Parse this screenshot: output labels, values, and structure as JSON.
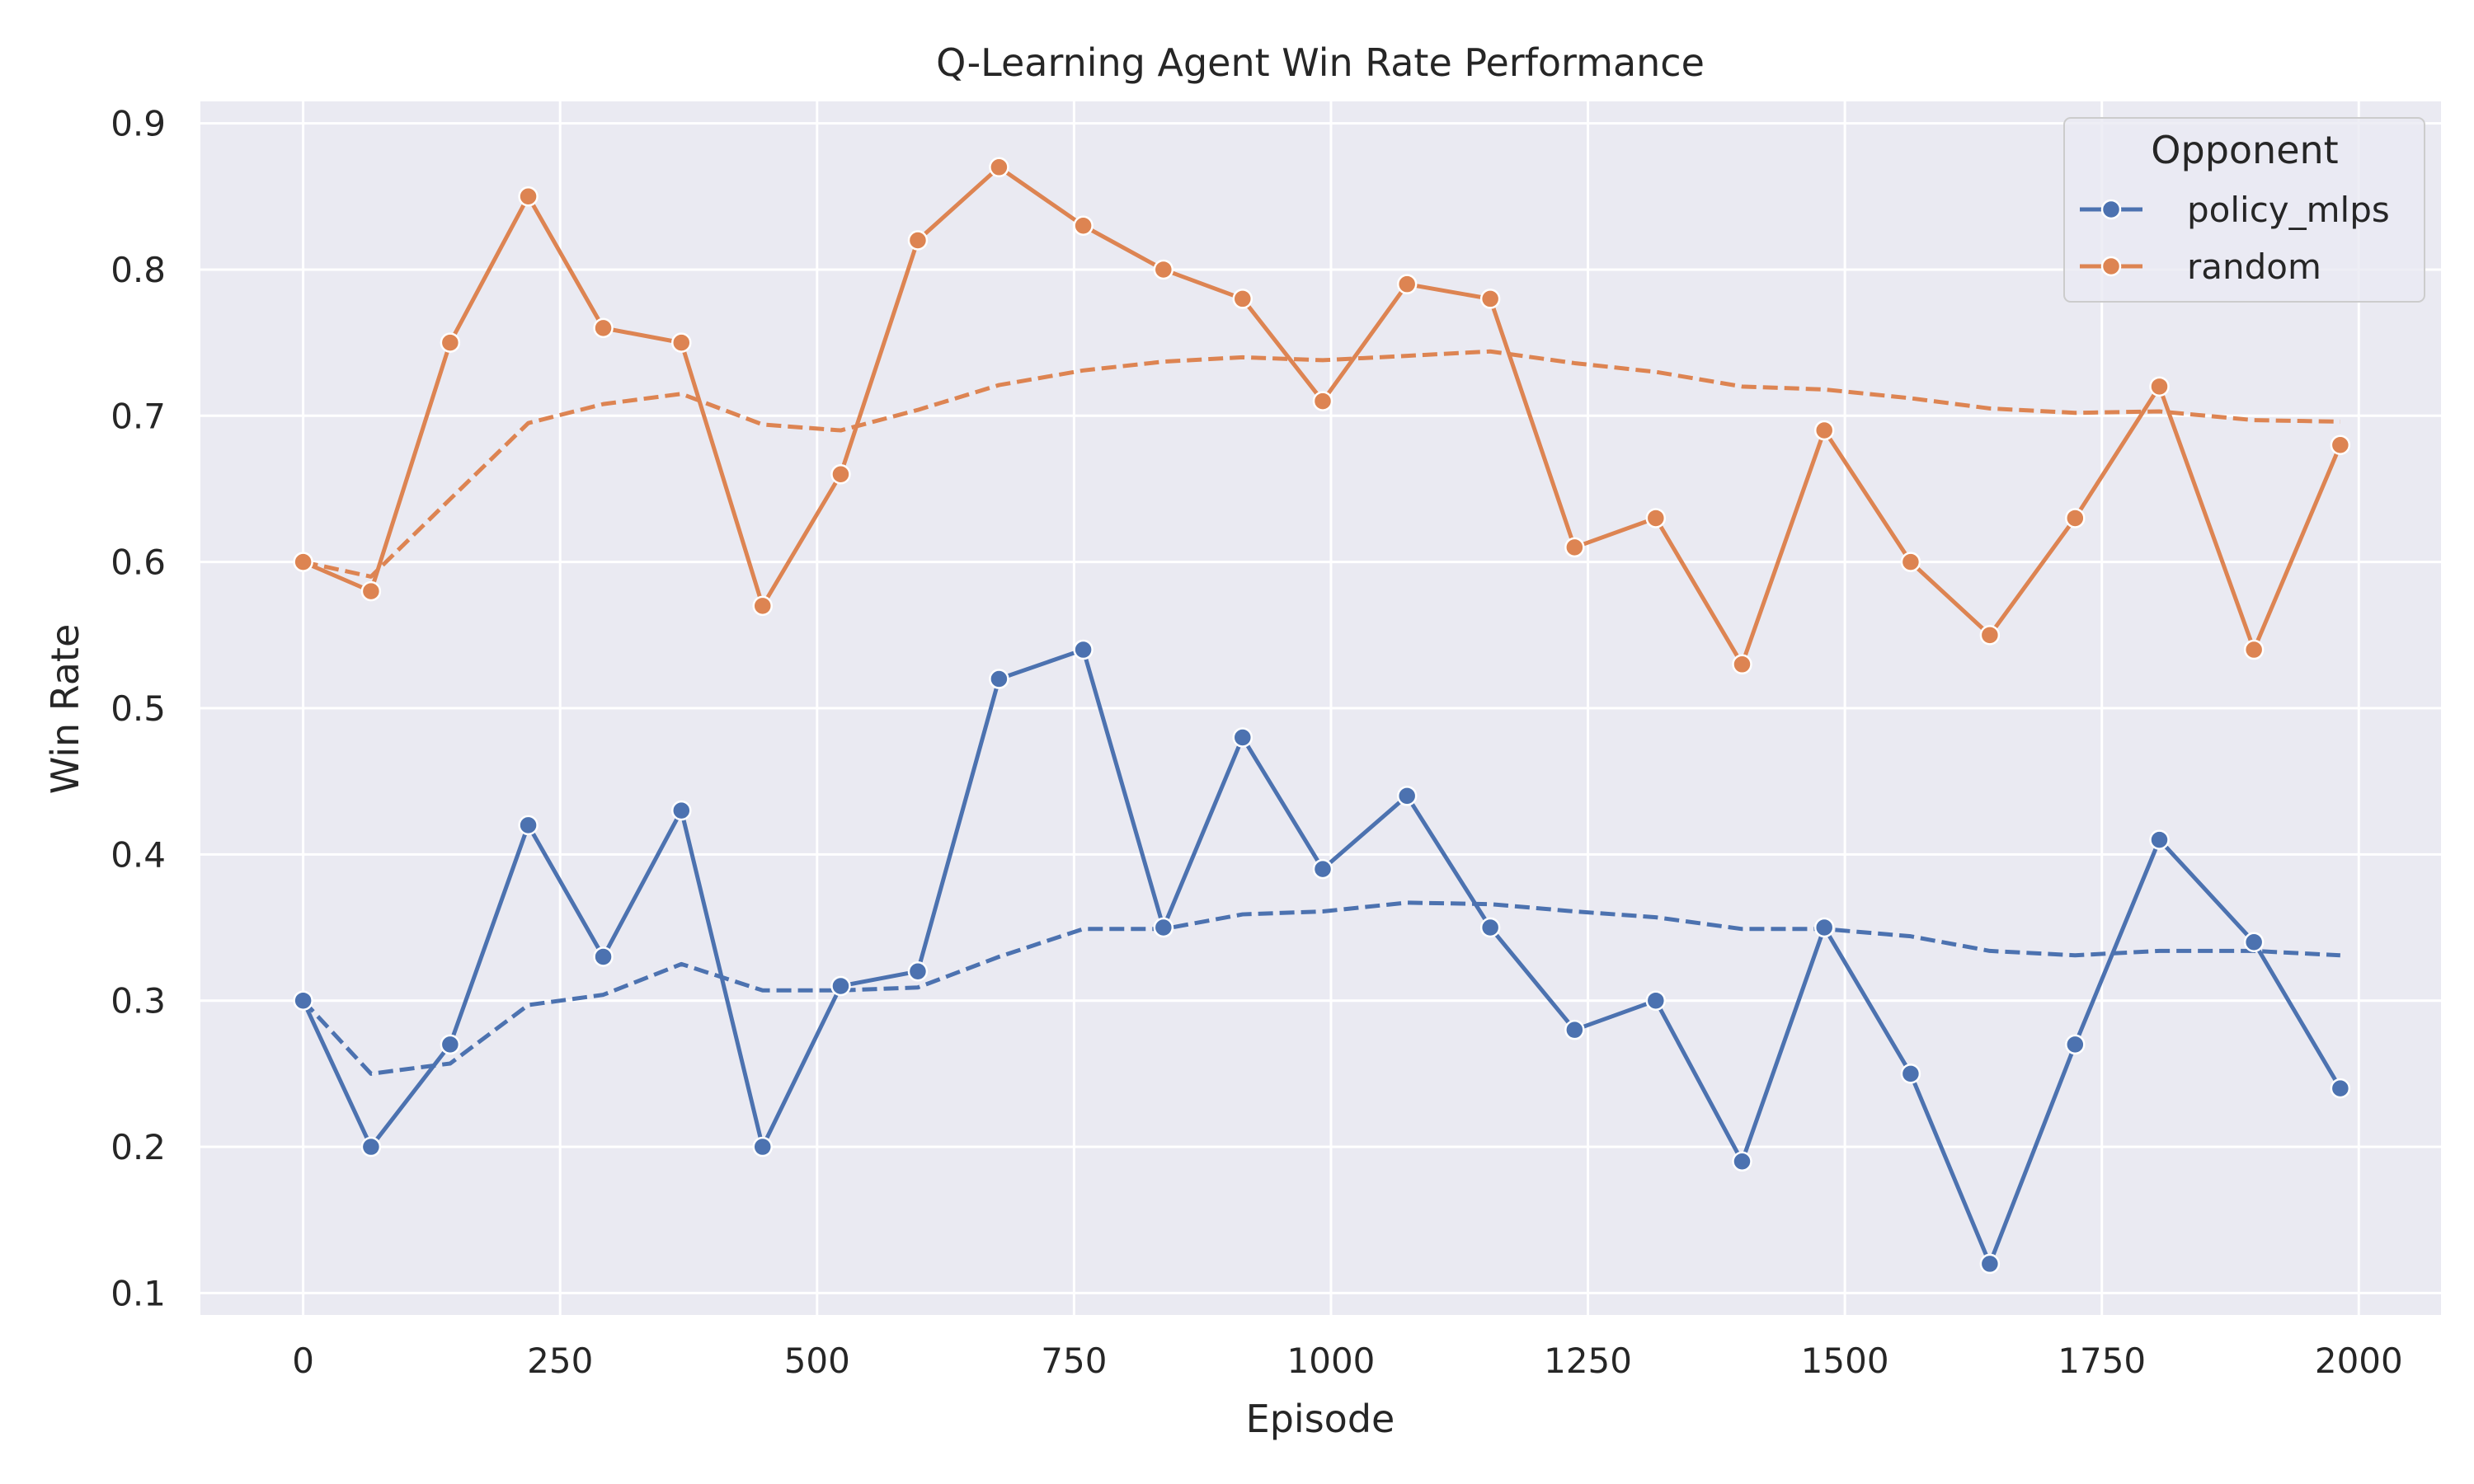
{
  "chart_data": {
    "type": "line",
    "title": "Q-Learning Agent Win Rate Performance",
    "xlabel": "Episode",
    "ylabel": "Win Rate",
    "xlim": [
      -100,
      2080
    ],
    "ylim": [
      0.085,
      0.915
    ],
    "xticks": [
      0,
      250,
      500,
      750,
      1000,
      1250,
      1500,
      1750,
      2000
    ],
    "yticks": [
      0.1,
      0.2,
      0.3,
      0.4,
      0.5,
      0.6,
      0.7,
      0.8,
      0.9
    ],
    "xtick_labels": [
      "0",
      "250",
      "500",
      "750",
      "1000",
      "1250",
      "1500",
      "1750",
      "2000"
    ],
    "ytick_labels": [
      "0.1",
      "0.2",
      "0.3",
      "0.4",
      "0.5",
      "0.6",
      "0.7",
      "0.8",
      "0.9"
    ],
    "grid": true,
    "background": "#eaeaf2",
    "legend": {
      "title": "Opponent",
      "placement": "top-right",
      "entries": [
        "policy_mlps",
        "random"
      ]
    },
    "x": [
      0,
      66,
      143,
      219,
      292,
      368,
      447,
      523,
      598,
      677,
      759,
      837,
      914,
      992,
      1074,
      1155,
      1237,
      1316,
      1400,
      1480,
      1564,
      1641,
      1724,
      1806,
      1898,
      1982
    ],
    "series": [
      {
        "name": "policy_mlps",
        "color": "#4c72b0",
        "values": [
          0.3,
          0.2,
          0.27,
          0.42,
          0.33,
          0.43,
          0.2,
          0.31,
          0.32,
          0.52,
          0.54,
          0.35,
          0.48,
          0.39,
          0.44,
          0.35,
          0.28,
          0.3,
          0.19,
          0.35,
          0.25,
          0.12,
          0.27,
          0.41,
          0.34,
          0.24
        ],
        "moving_average": [
          0.3,
          0.25,
          0.257,
          0.297,
          0.304,
          0.325,
          0.307,
          0.307,
          0.309,
          0.33,
          0.349,
          0.349,
          0.359,
          0.361,
          0.367,
          0.366,
          0.361,
          0.357,
          0.349,
          0.349,
          0.344,
          0.334,
          0.331,
          0.334,
          0.334,
          0.331
        ]
      },
      {
        "name": "random",
        "color": "#dd8452",
        "values": [
          0.6,
          0.58,
          0.75,
          0.85,
          0.76,
          0.75,
          0.57,
          0.66,
          0.82,
          0.87,
          0.83,
          0.8,
          0.78,
          0.71,
          0.79,
          0.78,
          0.61,
          0.63,
          0.53,
          0.69,
          0.6,
          0.55,
          0.63,
          0.72,
          0.54,
          0.68
        ],
        "moving_average": [
          0.6,
          0.59,
          0.643,
          0.695,
          0.708,
          0.715,
          0.694,
          0.69,
          0.704,
          0.721,
          0.731,
          0.737,
          0.74,
          0.738,
          0.741,
          0.744,
          0.736,
          0.73,
          0.72,
          0.718,
          0.712,
          0.705,
          0.702,
          0.703,
          0.697,
          0.696
        ]
      }
    ]
  }
}
